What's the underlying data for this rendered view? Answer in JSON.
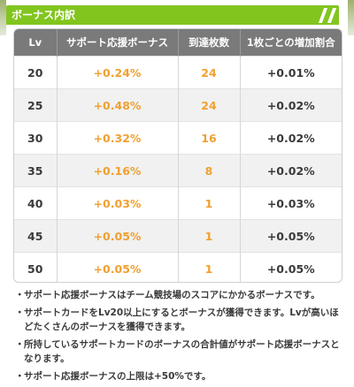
{
  "header": {
    "title": "ボーナス内訳"
  },
  "table": {
    "columns": [
      "Lv",
      "サポート応援ボーナス",
      "到達枚数",
      "1枚ごとの増加割合"
    ],
    "rows": [
      {
        "lv": "20",
        "bonus": "+0.24%",
        "count": "24",
        "increase": "+0.01%"
      },
      {
        "lv": "25",
        "bonus": "+0.48%",
        "count": "24",
        "increase": "+0.02%"
      },
      {
        "lv": "30",
        "bonus": "+0.32%",
        "count": "16",
        "increase": "+0.02%"
      },
      {
        "lv": "35",
        "bonus": "+0.16%",
        "count": "8",
        "increase": "+0.02%"
      },
      {
        "lv": "40",
        "bonus": "+0.03%",
        "count": "1",
        "increase": "+0.03%"
      },
      {
        "lv": "45",
        "bonus": "+0.05%",
        "count": "1",
        "increase": "+0.05%"
      },
      {
        "lv": "50",
        "bonus": "+0.05%",
        "count": "1",
        "increase": "+0.05%"
      }
    ]
  },
  "notes": [
    {
      "bullet": "・",
      "text": "サポート応援ボーナスはチーム競技場のスコアにかかるボーナスです。"
    },
    {
      "bullet": "・",
      "text": "サポートカードをLv20以上にするとボーナスが獲得できます。Lvが高いほどたくさんのボーナスを獲得できます。"
    },
    {
      "bullet": "・",
      "text": "所持しているサポートカードのボーナスの合計値がサポート応援ボーナスとなります。"
    },
    {
      "bullet": "・",
      "text": "サポート応援ボーナスの上限は+50%です。"
    }
  ],
  "colors": {
    "header_green": "#82c51f",
    "table_header_gray": "#7a7a7a",
    "value_orange": "#f0a030"
  }
}
